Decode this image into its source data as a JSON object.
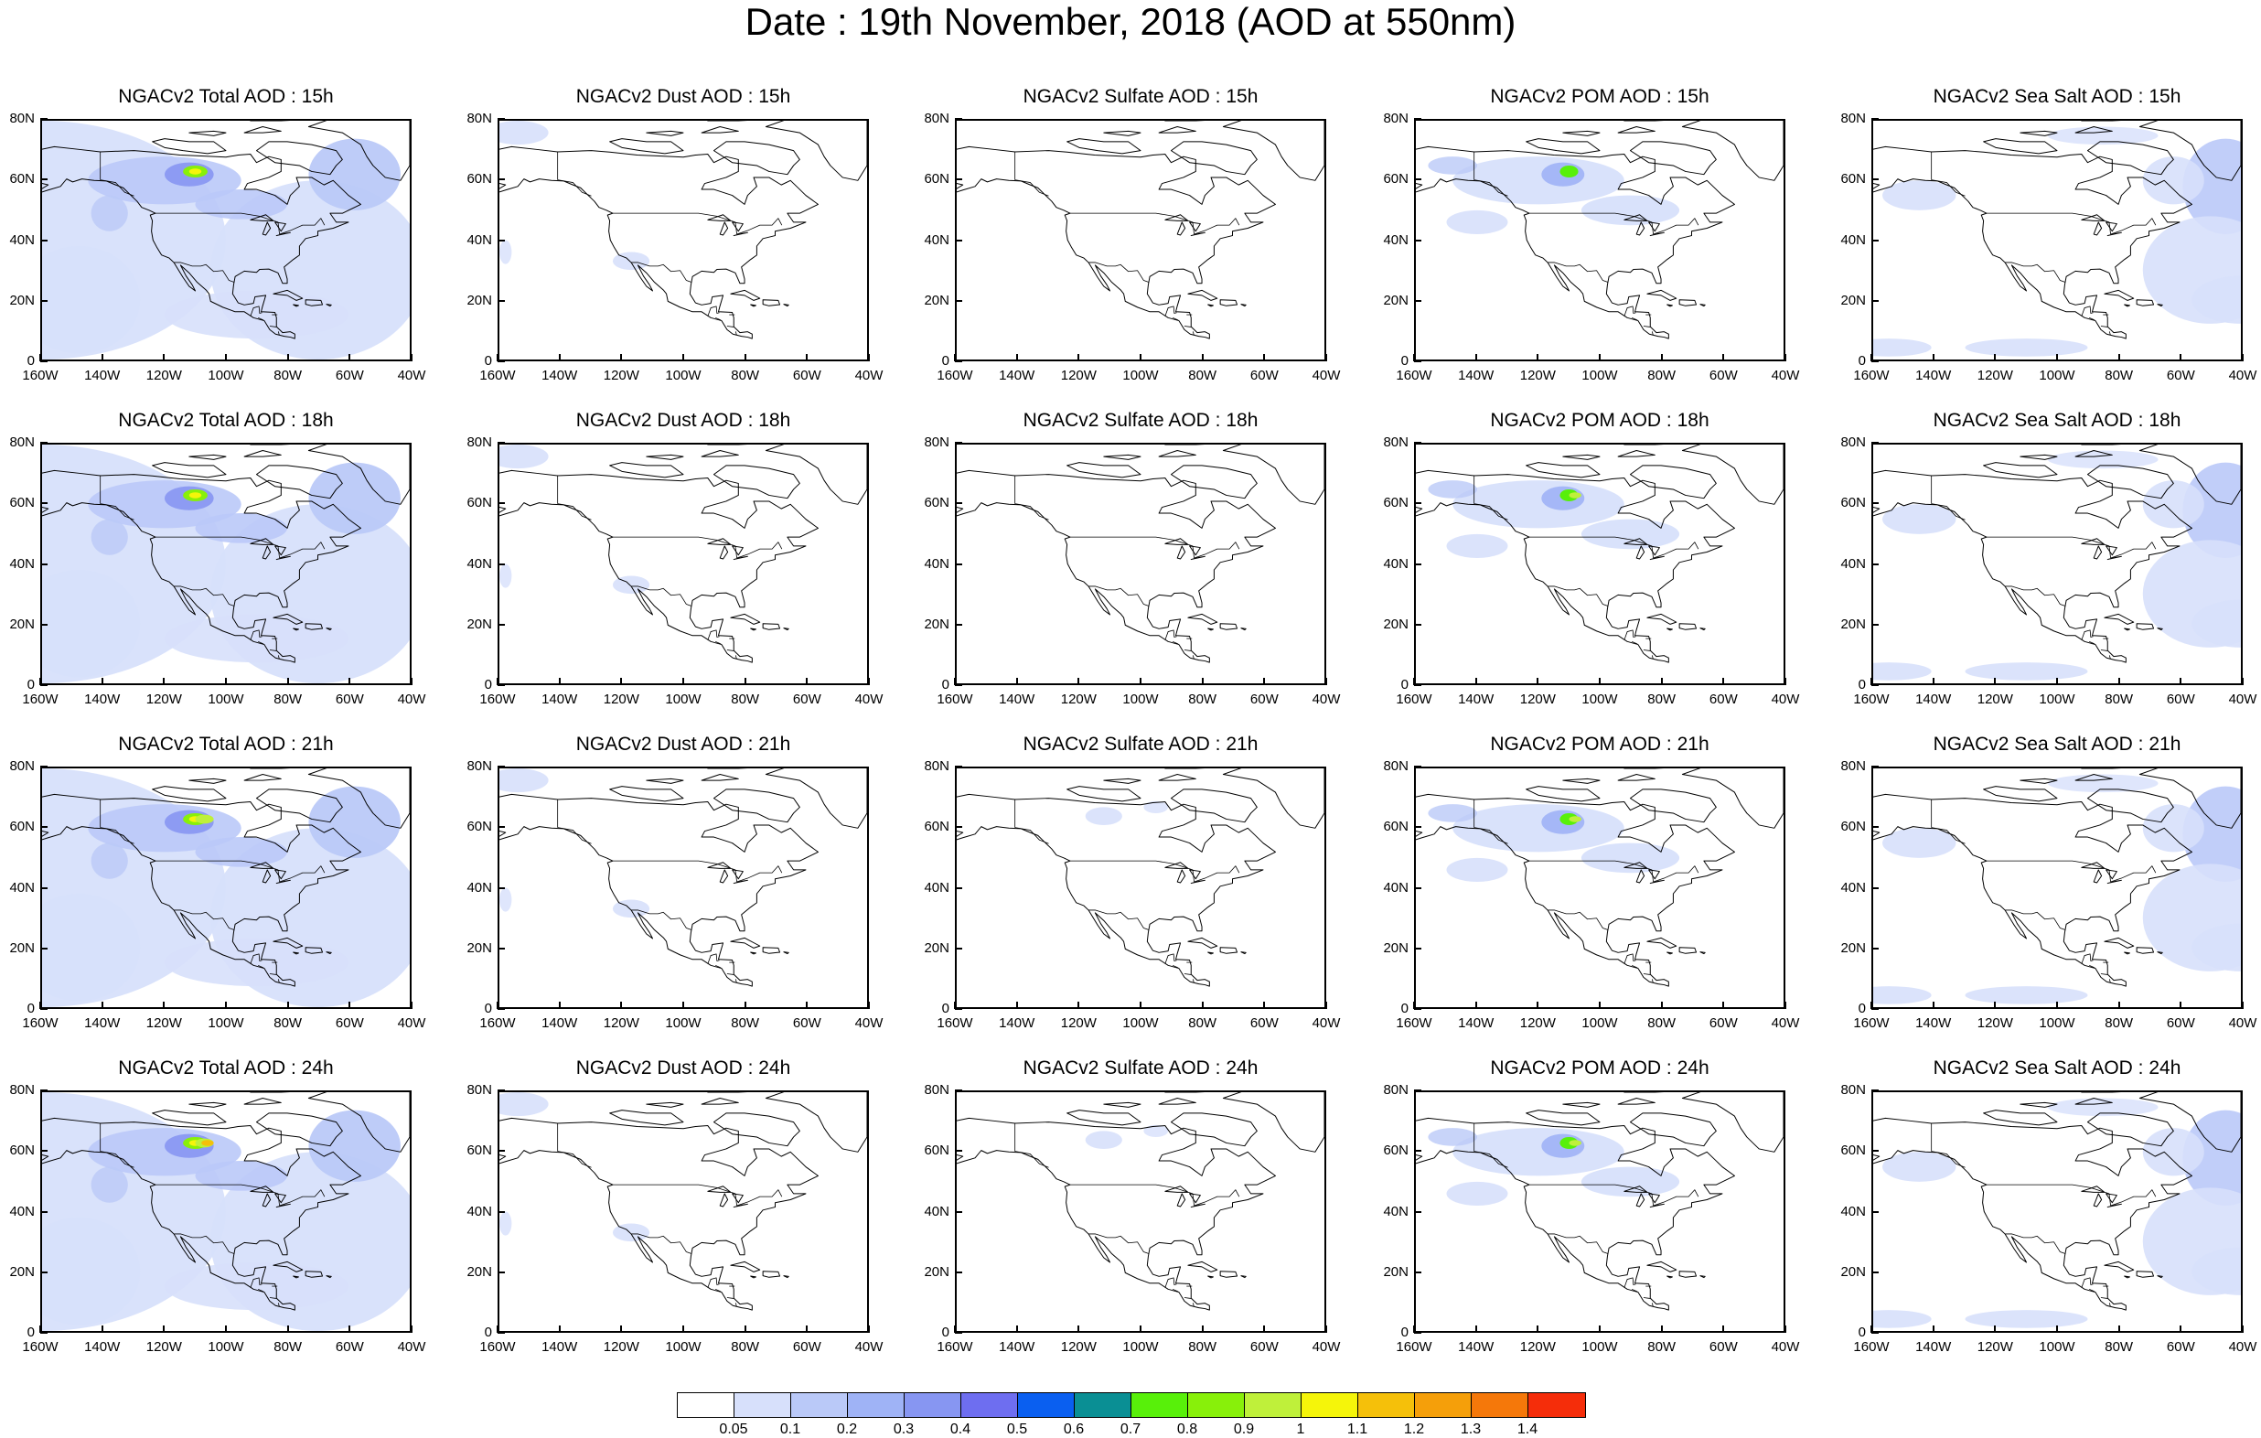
{
  "title": "Date : 19th November, 2018 (AOD at 550nm)",
  "columns": [
    {
      "species": "Total",
      "titles": [
        "NGACv2 Total AOD : 15h",
        "NGACv2 Total AOD : 18h",
        "NGACv2 Total AOD : 21h",
        "NGACv2 Total AOD : 24h"
      ]
    },
    {
      "species": "Dust",
      "titles": [
        "NGACv2 Dust AOD : 15h",
        "NGACv2 Dust AOD : 18h",
        "NGACv2 Dust AOD : 21h",
        "NGACv2 Dust AOD : 24h"
      ]
    },
    {
      "species": "Sulfate",
      "titles": [
        "NGACv2 Sulfate AOD : 15h",
        "NGACv2 Sulfate AOD : 18h",
        "NGACv2 Sulfate AOD : 21h",
        "NGACv2 Sulfate AOD : 24h"
      ]
    },
    {
      "species": "POM",
      "titles": [
        "NGACv2 POM AOD : 15h",
        "NGACv2 POM AOD : 18h",
        "NGACv2 POM AOD : 21h",
        "NGACv2 POM AOD : 24h"
      ]
    },
    {
      "species": "Sea Salt",
      "titles": [
        "NGACv2 Sea Salt AOD : 15h",
        "NGACv2 Sea Salt AOD : 18h",
        "NGACv2 Sea Salt AOD : 21h",
        "NGACv2 Sea Salt  AOD : 24h"
      ]
    }
  ],
  "y_ticks": [
    "80N",
    "60N",
    "40N",
    "20N",
    "0"
  ],
  "x_ticks": [
    "160W",
    "140W",
    "120W",
    "100W",
    "80W",
    "60W",
    "40W"
  ],
  "lat_range": [
    0,
    80
  ],
  "lon_range": [
    -160,
    -40
  ],
  "colorbar": {
    "colors": [
      "#ffffff",
      "#d7e0fb",
      "#bac9f8",
      "#9fb3f6",
      "#8796f2",
      "#6e6ef0",
      "#0a5ff0",
      "#0a8f94",
      "#58f00a",
      "#88f00a",
      "#bff03a",
      "#f5f50a",
      "#f5c00a",
      "#f59f0a",
      "#f5780a",
      "#f52d0a"
    ],
    "labels": [
      "0.05",
      "0.1",
      "0.2",
      "0.3",
      "0.4",
      "0.5",
      "0.6",
      "0.7",
      "0.8",
      "0.9",
      "1",
      "1.1",
      "1.2",
      "1.3",
      "1.4"
    ]
  }
}
